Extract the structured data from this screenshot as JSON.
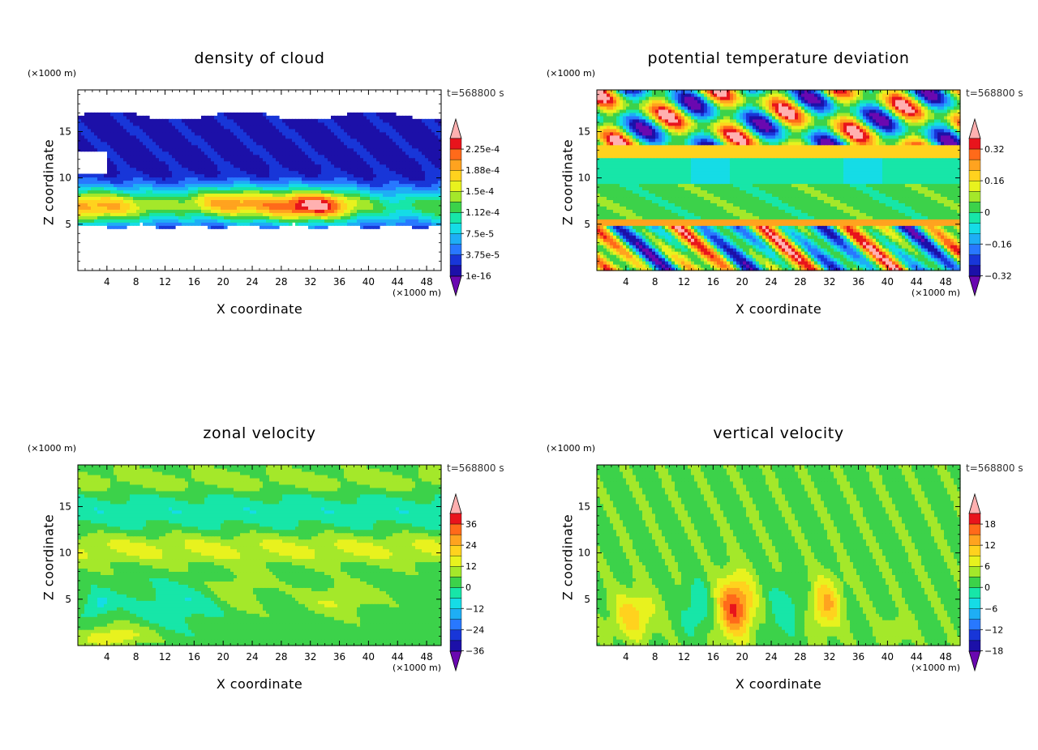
{
  "chart_data": [
    {
      "type": "heatmap",
      "title": "density of cloud",
      "xlabel": "X coordinate",
      "ylabel": "Z coordinate",
      "x_unit": "(×1000 m)",
      "y_unit": "(×1000 m)",
      "time_label": "t=568800 s",
      "xlim": [
        0,
        50
      ],
      "ylim": [
        0,
        19.5
      ],
      "x_ticks": [
        4,
        8,
        12,
        16,
        20,
        24,
        28,
        32,
        36,
        40,
        44,
        48
      ],
      "y_ticks": [
        5,
        10,
        15
      ],
      "colorbar_ticks": [
        "2.25e-4",
        "1.88e-4",
        "1.5e-4",
        "1.12e-4",
        "7.5e-5",
        "3.75e-5",
        "1e-16"
      ],
      "colorbar_colors": [
        "#ffb0b0",
        "#e8141c",
        "#ff6a1a",
        "#ffa31f",
        "#ffd21e",
        "#e8f21e",
        "#a4e82a",
        "#3cd24a",
        "#17e6a8",
        "#15dce6",
        "#1eaef5",
        "#2878ff",
        "#1836d8",
        "#1c10a8",
        "#6a08b0"
      ]
    },
    {
      "type": "heatmap",
      "title": "potential temperature deviation",
      "xlabel": "X coordinate",
      "ylabel": "Z coordinate",
      "x_unit": "(×1000 m)",
      "y_unit": "(×1000 m)",
      "time_label": "t=568800 s",
      "xlim": [
        0,
        50
      ],
      "ylim": [
        0,
        19.5
      ],
      "x_ticks": [
        4,
        8,
        12,
        16,
        20,
        24,
        28,
        32,
        36,
        40,
        44,
        48
      ],
      "y_ticks": [
        5,
        10,
        15
      ],
      "colorbar_ticks": [
        "0.32",
        "0.16",
        "0",
        "−0.16",
        "−0.32"
      ],
      "colorbar_colors": [
        "#ffb0b0",
        "#e8141c",
        "#ff6a1a",
        "#ffa31f",
        "#ffd21e",
        "#e8f21e",
        "#a4e82a",
        "#3cd24a",
        "#17e6a8",
        "#15dce6",
        "#1eaef5",
        "#2878ff",
        "#1836d8",
        "#1c10a8",
        "#6a08b0"
      ]
    },
    {
      "type": "heatmap",
      "title": "zonal velocity",
      "xlabel": "X coordinate",
      "ylabel": "Z coordinate",
      "x_unit": "(×1000 m)",
      "y_unit": "(×1000 m)",
      "time_label": "t=568800 s",
      "xlim": [
        0,
        50
      ],
      "ylim": [
        0,
        19.5
      ],
      "x_ticks": [
        4,
        8,
        12,
        16,
        20,
        24,
        28,
        32,
        36,
        40,
        44,
        48
      ],
      "y_ticks": [
        5,
        10,
        15
      ],
      "colorbar_ticks": [
        "36",
        "24",
        "12",
        "0",
        "−12",
        "−24",
        "−36"
      ],
      "colorbar_colors": [
        "#ffb0b0",
        "#e8141c",
        "#ff6a1a",
        "#ffa31f",
        "#ffd21e",
        "#e8f21e",
        "#a4e82a",
        "#3cd24a",
        "#17e6a8",
        "#15dce6",
        "#1eaef5",
        "#2878ff",
        "#1836d8",
        "#1c10a8",
        "#6a08b0"
      ]
    },
    {
      "type": "heatmap",
      "title": "vertical velocity",
      "xlabel": "X coordinate",
      "ylabel": "Z coordinate",
      "x_unit": "(×1000 m)",
      "y_unit": "(×1000 m)",
      "time_label": "t=568800 s",
      "xlim": [
        0,
        50
      ],
      "ylim": [
        0,
        19.5
      ],
      "x_ticks": [
        4,
        8,
        12,
        16,
        20,
        24,
        28,
        32,
        36,
        40,
        44,
        48
      ],
      "y_ticks": [
        5,
        10,
        15
      ],
      "colorbar_ticks": [
        "18",
        "12",
        "6",
        "0",
        "−6",
        "−12",
        "−18"
      ],
      "colorbar_colors": [
        "#ffb0b0",
        "#e8141c",
        "#ff6a1a",
        "#ffa31f",
        "#ffd21e",
        "#e8f21e",
        "#a4e82a",
        "#3cd24a",
        "#17e6a8",
        "#15dce6",
        "#1eaef5",
        "#2878ff",
        "#1836d8",
        "#1c10a8",
        "#6a08b0"
      ]
    }
  ]
}
